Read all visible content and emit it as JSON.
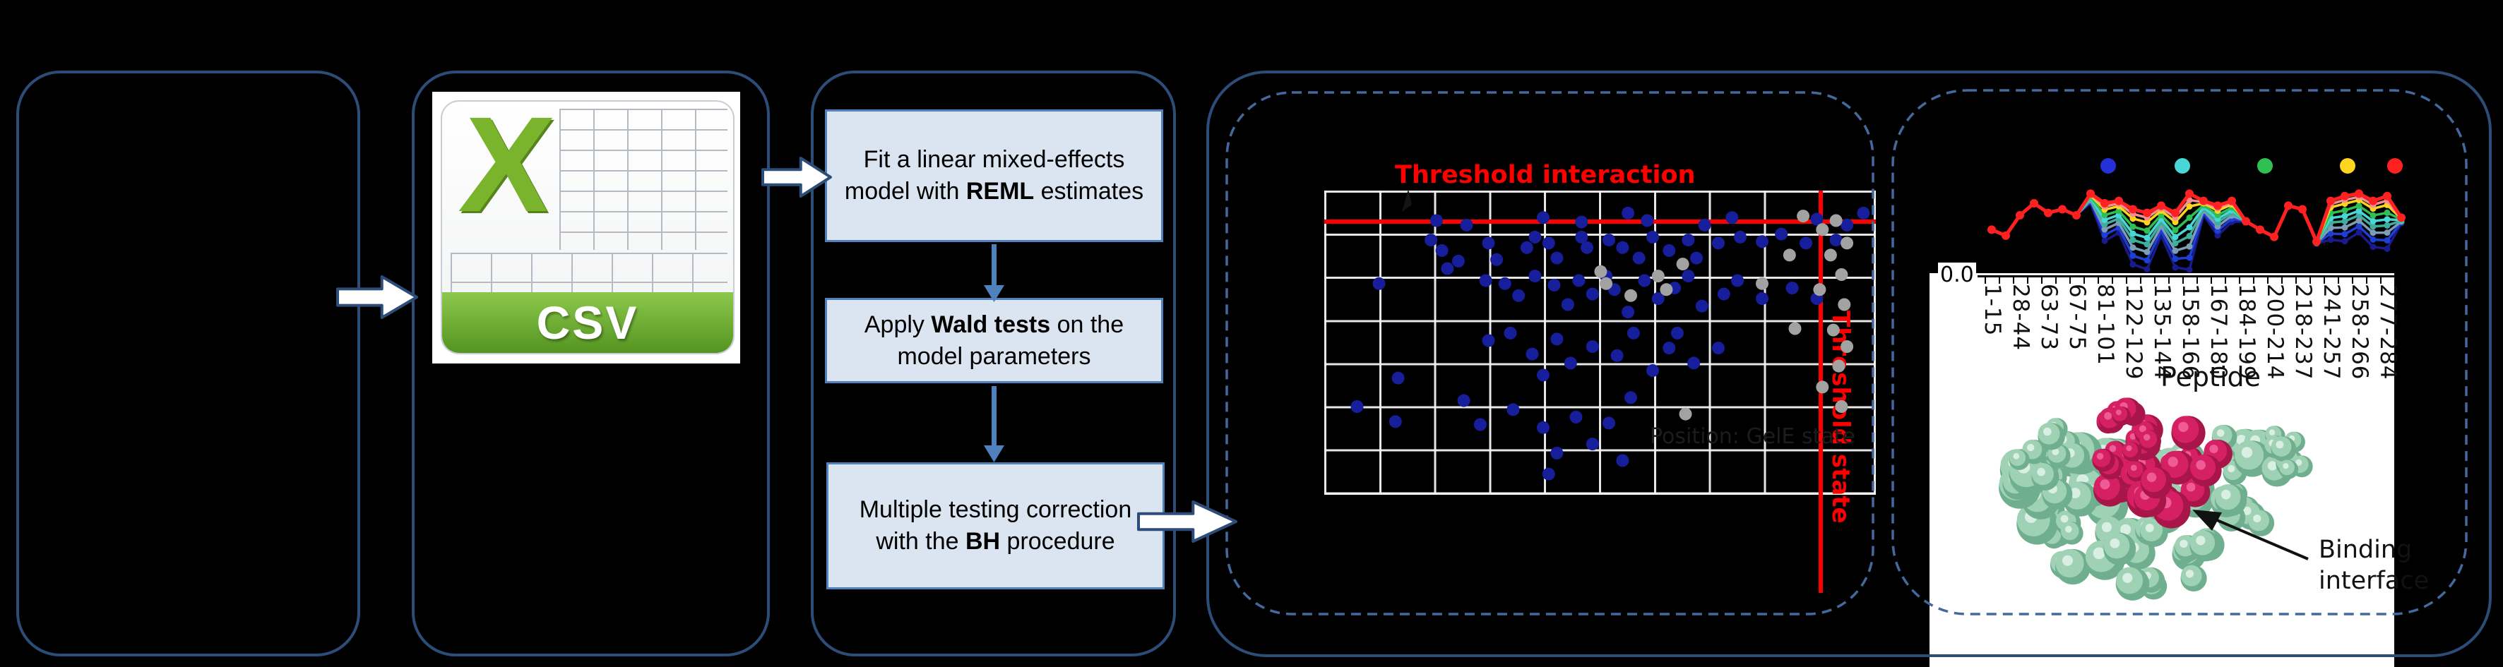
{
  "figure": {
    "background": "#000000",
    "panel_border_color": "#2d4d79",
    "dashed_border_color": "#44699c",
    "step_fill": "#dbe5f1",
    "step_border": "#4f81bd"
  },
  "csv_card": {
    "x_letter": "X",
    "label": "CSV"
  },
  "flow_steps": [
    {
      "segments": [
        {
          "t": "Fit a linear mixed-effects model with "
        },
        {
          "t": "REML",
          "b": true
        },
        {
          "t": " estimates"
        }
      ]
    },
    {
      "segments": [
        {
          "t": "Apply "
        },
        {
          "t": "Wald tests",
          "b": true
        },
        {
          "t": " on the model parameters"
        }
      ]
    },
    {
      "segments": [
        {
          "t": "Multiple testing correction"
        },
        {
          "br": true
        },
        {
          "t": "with the "
        },
        {
          "t": "BH",
          "b": true
        },
        {
          "t": " procedure"
        }
      ]
    }
  ],
  "scatter": {
    "title": "Threshold interaction",
    "side_label": "Threshold state",
    "faint_label": "Position: GelE state",
    "threshold_color": "#ff0000",
    "significant_color": "#171e9c",
    "nonsignificant_color": "#a2a2a2"
  },
  "uptake": {
    "xlabel": "Peptide",
    "y_tick": "0.0",
    "tick_labels": [
      "1-15",
      "28-44",
      "63-73",
      "67-75",
      "81-101",
      "122-129",
      "135-144",
      "158-166",
      "167-180",
      "184-199",
      "200-214",
      "218-237",
      "241-257",
      "258-266",
      "277-284"
    ],
    "legend_colors": [
      "#2430d8",
      "#49d6d6",
      "#2fbf53",
      "#ffd41f",
      "#ff2121"
    ]
  },
  "protein": {
    "annotation_line1": "Binding",
    "annotation_line2": "interface"
  },
  "chart_data": [
    {
      "type": "scatter",
      "title": "Threshold interaction",
      "xlabel": "",
      "ylabel": "",
      "right_label": "Threshold state",
      "grid": {
        "cols": 10,
        "rows": 7,
        "grid_on": true
      },
      "thresholds": {
        "horizontal_y_frac": 0.1,
        "vertical_x_frac": 0.902
      },
      "series": [
        {
          "name": "significant",
          "color": "#171e9c",
          "points": [
            [
              0.205,
              0.1
            ],
            [
              0.26,
              0.115
            ],
            [
              0.4,
              0.09
            ],
            [
              0.47,
              0.105
            ],
            [
              0.555,
              0.075
            ],
            [
              0.59,
              0.1
            ],
            [
              0.695,
              0.115
            ],
            [
              0.745,
              0.09
            ],
            [
              0.9,
              0.095
            ],
            [
              0.955,
              0.115
            ],
            [
              0.985,
              0.075
            ],
            [
              0.195,
              0.165
            ],
            [
              0.215,
              0.2
            ],
            [
              0.245,
              0.235
            ],
            [
              0.225,
              0.26
            ],
            [
              0.3,
              0.175
            ],
            [
              0.315,
              0.23
            ],
            [
              0.37,
              0.19
            ],
            [
              0.385,
              0.155
            ],
            [
              0.41,
              0.175
            ],
            [
              0.425,
              0.225
            ],
            [
              0.47,
              0.155
            ],
            [
              0.48,
              0.19
            ],
            [
              0.52,
              0.165
            ],
            [
              0.545,
              0.19
            ],
            [
              0.575,
              0.225
            ],
            [
              0.6,
              0.155
            ],
            [
              0.63,
              0.2
            ],
            [
              0.665,
              0.165
            ],
            [
              0.68,
              0.225
            ],
            [
              0.72,
              0.175
            ],
            [
              0.76,
              0.155
            ],
            [
              0.8,
              0.17
            ],
            [
              0.835,
              0.145
            ],
            [
              0.88,
              0.175
            ],
            [
              0.935,
              0.165
            ],
            [
              0.1,
              0.31
            ],
            [
              0.295,
              0.3
            ],
            [
              0.33,
              0.31
            ],
            [
              0.355,
              0.35
            ],
            [
              0.385,
              0.285
            ],
            [
              0.42,
              0.315
            ],
            [
              0.445,
              0.38
            ],
            [
              0.465,
              0.3
            ],
            [
              0.49,
              0.345
            ],
            [
              0.515,
              0.285
            ],
            [
              0.53,
              0.33
            ],
            [
              0.555,
              0.405
            ],
            [
              0.585,
              0.3
            ],
            [
              0.61,
              0.36
            ],
            [
              0.64,
              0.325
            ],
            [
              0.665,
              0.285
            ],
            [
              0.69,
              0.385
            ],
            [
              0.73,
              0.345
            ],
            [
              0.755,
              0.3
            ],
            [
              0.8,
              0.36
            ],
            [
              0.855,
              0.325
            ],
            [
              0.9,
              0.36
            ],
            [
              0.3,
              0.5
            ],
            [
              0.34,
              0.475
            ],
            [
              0.38,
              0.545
            ],
            [
              0.425,
              0.495
            ],
            [
              0.45,
              0.575
            ],
            [
              0.49,
              0.52
            ],
            [
              0.535,
              0.55
            ],
            [
              0.565,
              0.475
            ],
            [
              0.6,
              0.6
            ],
            [
              0.63,
              0.525
            ],
            [
              0.645,
              0.475
            ],
            [
              0.675,
              0.575
            ],
            [
              0.72,
              0.525
            ],
            [
              0.4,
              0.615
            ],
            [
              0.135,
              0.625
            ],
            [
              0.06,
              0.72
            ],
            [
              0.13,
              0.77
            ],
            [
              0.255,
              0.7
            ],
            [
              0.285,
              0.78
            ],
            [
              0.345,
              0.73
            ],
            [
              0.4,
              0.79
            ],
            [
              0.425,
              0.875
            ],
            [
              0.46,
              0.755
            ],
            [
              0.49,
              0.845
            ],
            [
              0.52,
              0.775
            ],
            [
              0.545,
              0.9
            ],
            [
              0.41,
              0.945
            ],
            [
              0.56,
              0.69
            ]
          ]
        },
        {
          "name": "non-significant",
          "color": "#a2a2a2",
          "points": [
            [
              0.505,
              0.27
            ],
            [
              0.515,
              0.31
            ],
            [
              0.61,
              0.285
            ],
            [
              0.625,
              0.33
            ],
            [
              0.655,
              0.245
            ],
            [
              0.8,
              0.31
            ],
            [
              0.56,
              0.35
            ],
            [
              0.875,
              0.085
            ],
            [
              0.91,
              0.13
            ],
            [
              0.935,
              0.1
            ],
            [
              0.955,
              0.175
            ],
            [
              0.925,
              0.215
            ],
            [
              0.945,
              0.28
            ],
            [
              0.905,
              0.33
            ],
            [
              0.95,
              0.38
            ],
            [
              0.93,
              0.465
            ],
            [
              0.955,
              0.52
            ],
            [
              0.94,
              0.585
            ],
            [
              0.91,
              0.655
            ],
            [
              0.945,
              0.72
            ],
            [
              0.86,
              0.46
            ],
            [
              0.66,
              0.745
            ],
            [
              0.85,
              0.215
            ]
          ]
        }
      ]
    },
    {
      "type": "line",
      "title": "",
      "xlabel": "Peptide",
      "ylabel": "",
      "first_y_tick": "0.0",
      "n_points": 30,
      "tick_labels_every_other": [
        "1-15",
        "28-44",
        "63-73",
        "67-75",
        "81-101",
        "122-129",
        "135-144",
        "158-166",
        "167-180",
        "184-199",
        "200-214",
        "218-237",
        "241-257",
        "258-266",
        "277-284"
      ],
      "top_series_values": [
        0.38,
        0.33,
        0.5,
        0.6,
        0.52,
        0.55,
        0.5,
        0.68,
        0.6,
        0.62,
        0.55,
        0.52,
        0.58,
        0.52,
        0.68,
        0.62,
        0.58,
        0.62,
        0.45,
        0.38,
        0.32,
        0.58,
        0.55,
        0.28,
        0.62,
        0.66,
        0.68,
        0.62,
        0.66,
        0.48
      ],
      "spread_factor": [
        0,
        0,
        0,
        0,
        0,
        0,
        0,
        0.12,
        0.55,
        0.45,
        0.88,
        0.95,
        0.45,
        0.92,
        0.98,
        0.2,
        0.45,
        0.3,
        0,
        0,
        0,
        0,
        0,
        0.06,
        0.55,
        0.6,
        0.5,
        0.65,
        0.7,
        0.1
      ],
      "series": [
        {
          "name": "t-navy",
          "color": "#1a1a8c",
          "depth": 0.95
        },
        {
          "name": "t-blue",
          "color": "#1e3fd4",
          "depth": 0.8
        },
        {
          "name": "t-steel",
          "color": "#7d9cb5",
          "depth": 0.66
        },
        {
          "name": "t-teal",
          "color": "#3fae9e",
          "depth": 0.53
        },
        {
          "name": "t-cyan",
          "color": "#49d6d6",
          "depth": 0.42
        },
        {
          "name": "t-green",
          "color": "#2fbf53",
          "depth": 0.3
        },
        {
          "name": "t-yellow",
          "color": "#ffd41f",
          "depth": 0.16
        },
        {
          "name": "t-salmon",
          "color": "#f49090",
          "depth": 0.08
        },
        {
          "name": "t-red",
          "color": "#ff2121",
          "depth": 0
        }
      ],
      "legend_dot_colors": [
        "#2430d8",
        "#49d6d6",
        "#2fbf53",
        "#ffd41f",
        "#ff2121"
      ],
      "legend_position": "top"
    }
  ]
}
